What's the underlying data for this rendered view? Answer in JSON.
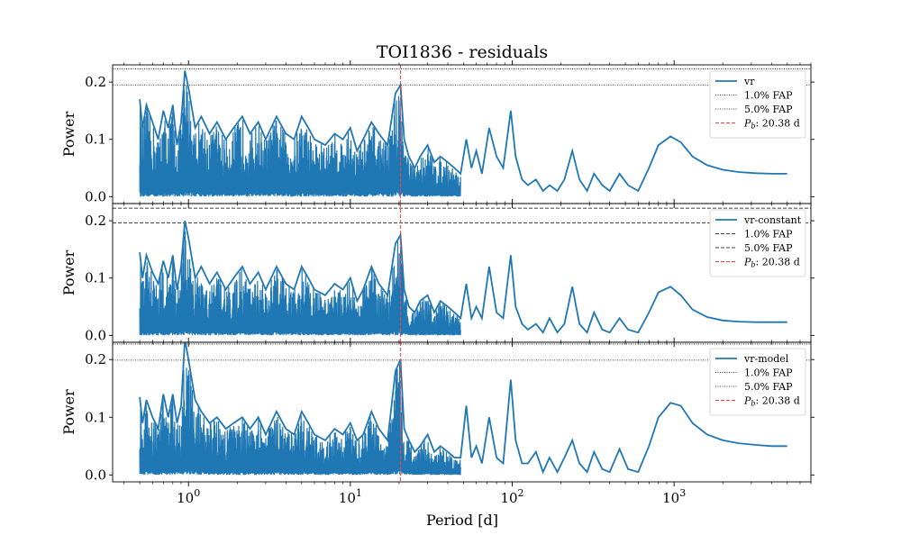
{
  "figure": {
    "title": "TOI1836 - residuals",
    "xlabel": "Period [d]",
    "x_tick_labels": [
      {
        "value": 1,
        "base": "10",
        "exp": "0"
      },
      {
        "value": 10,
        "base": "10",
        "exp": "1"
      },
      {
        "value": 100,
        "base": "10",
        "exp": "2"
      },
      {
        "value": 1000,
        "base": "10",
        "exp": "3"
      }
    ],
    "y_tick_labels": [
      "0.0",
      "0.1",
      "0.2"
    ],
    "colors": {
      "series": "#1f77b4",
      "marker_line": "#ff3b3b",
      "fap": "#000000"
    }
  },
  "chart_data": [
    {
      "type": "line",
      "xscale": "log",
      "xlim": [
        0.34,
        7000
      ],
      "ylim": [
        -0.012,
        0.23
      ],
      "ylabel": "Power",
      "legend_position": "top-right",
      "fap_style": "dotted",
      "fap_levels": [
        {
          "label": "1.0% FAP",
          "value": 0.223
        },
        {
          "label": "5.0% FAP",
          "value": 0.195
        }
      ],
      "marker": {
        "label_prefix": "P",
        "label_sub": "b",
        "label_suffix": ": 20.38 d",
        "period": 20.38
      },
      "series": [
        {
          "name": "vr",
          "x": [
            0.5,
            0.52,
            0.55,
            0.6,
            0.65,
            0.7,
            0.75,
            0.8,
            0.85,
            0.9,
            0.95,
            1.0,
            1.1,
            1.2,
            1.35,
            1.5,
            1.7,
            1.9,
            2.15,
            2.4,
            2.7,
            3.0,
            3.5,
            4.0,
            4.5,
            5.0,
            5.5,
            6.0,
            7.0,
            8.0,
            9.0,
            10.0,
            11.0,
            12.0,
            13.5,
            15.0,
            17.0,
            19.0,
            20.4,
            21.5,
            23.0,
            25.0,
            27.0,
            30.0,
            33.0,
            36.0,
            40.0,
            44.0,
            48.0,
            52.0,
            56.0,
            60.0,
            65.0,
            72.0,
            80.0,
            88.0,
            98.0,
            105.0,
            115.0,
            125.0,
            140.0,
            155.0,
            170.0,
            190.0,
            210.0,
            235.0,
            260.0,
            290.0,
            320.0,
            360.0,
            400.0,
            460.0,
            520.0,
            600.0,
            700.0,
            800.0,
            950.0,
            1100.0,
            1300.0,
            1600.0,
            2000.0,
            2500.0,
            3200.0,
            4000.0,
            5000.0
          ],
          "y": [
            0.17,
            0.12,
            0.16,
            0.13,
            0.1,
            0.15,
            0.12,
            0.16,
            0.09,
            0.13,
            0.22,
            0.19,
            0.12,
            0.14,
            0.11,
            0.13,
            0.1,
            0.12,
            0.14,
            0.11,
            0.13,
            0.1,
            0.14,
            0.11,
            0.1,
            0.14,
            0.12,
            0.1,
            0.09,
            0.11,
            0.1,
            0.12,
            0.08,
            0.1,
            0.13,
            0.11,
            0.09,
            0.18,
            0.195,
            0.1,
            0.07,
            0.05,
            0.07,
            0.09,
            0.06,
            0.07,
            0.06,
            0.05,
            0.04,
            0.1,
            0.05,
            0.08,
            0.04,
            0.12,
            0.07,
            0.05,
            0.15,
            0.07,
            0.03,
            0.02,
            0.03,
            0.01,
            0.02,
            0.01,
            0.03,
            0.08,
            0.03,
            0.01,
            0.04,
            0.02,
            0.01,
            0.04,
            0.02,
            0.01,
            0.05,
            0.09,
            0.105,
            0.095,
            0.07,
            0.055,
            0.047,
            0.043,
            0.041,
            0.04,
            0.04
          ]
        }
      ]
    },
    {
      "type": "line",
      "xscale": "log",
      "xlim": [
        0.34,
        7000
      ],
      "ylim": [
        -0.012,
        0.23
      ],
      "ylabel": "Power",
      "legend_position": "top-right",
      "fap_style": "dashed",
      "fap_levels": [
        {
          "label": "1.0% FAP",
          "value": 0.222
        },
        {
          "label": "5.0% FAP",
          "value": 0.196
        }
      ],
      "marker": {
        "label_prefix": "P",
        "label_sub": "b",
        "label_suffix": ": 20.38 d",
        "period": 20.38
      },
      "series": [
        {
          "name": "vr-constant",
          "x": [
            0.5,
            0.52,
            0.55,
            0.6,
            0.65,
            0.7,
            0.75,
            0.8,
            0.85,
            0.9,
            0.95,
            1.0,
            1.1,
            1.2,
            1.35,
            1.5,
            1.7,
            1.9,
            2.15,
            2.4,
            2.7,
            3.0,
            3.5,
            4.0,
            4.5,
            5.0,
            5.5,
            6.0,
            7.0,
            8.0,
            9.0,
            10.0,
            11.0,
            12.0,
            13.5,
            15.0,
            17.0,
            19.0,
            20.4,
            21.5,
            23.0,
            25.0,
            27.0,
            30.0,
            33.0,
            36.0,
            40.0,
            44.0,
            48.0,
            52.0,
            56.0,
            60.0,
            65.0,
            72.0,
            80.0,
            88.0,
            98.0,
            105.0,
            115.0,
            125.0,
            140.0,
            155.0,
            170.0,
            190.0,
            210.0,
            235.0,
            260.0,
            290.0,
            320.0,
            360.0,
            400.0,
            460.0,
            520.0,
            600.0,
            700.0,
            800.0,
            950.0,
            1100.0,
            1300.0,
            1600.0,
            2000.0,
            2500.0,
            3200.0,
            4000.0,
            5000.0
          ],
          "y": [
            0.145,
            0.1,
            0.14,
            0.11,
            0.09,
            0.13,
            0.1,
            0.14,
            0.08,
            0.12,
            0.2,
            0.17,
            0.1,
            0.12,
            0.09,
            0.11,
            0.08,
            0.1,
            0.12,
            0.09,
            0.11,
            0.08,
            0.12,
            0.09,
            0.08,
            0.12,
            0.1,
            0.08,
            0.07,
            0.09,
            0.08,
            0.1,
            0.06,
            0.08,
            0.12,
            0.09,
            0.07,
            0.16,
            0.175,
            0.08,
            0.05,
            0.04,
            0.06,
            0.07,
            0.04,
            0.06,
            0.05,
            0.04,
            0.03,
            0.09,
            0.03,
            0.05,
            0.03,
            0.12,
            0.04,
            0.03,
            0.14,
            0.05,
            0.02,
            0.01,
            0.02,
            0.005,
            0.03,
            0.005,
            0.02,
            0.085,
            0.02,
            0.005,
            0.04,
            0.01,
            0.005,
            0.03,
            0.01,
            0.005,
            0.04,
            0.075,
            0.085,
            0.07,
            0.045,
            0.032,
            0.026,
            0.024,
            0.023,
            0.023,
            0.023
          ]
        }
      ]
    },
    {
      "type": "line",
      "xscale": "log",
      "xlim": [
        0.34,
        7000
      ],
      "ylim": [
        -0.012,
        0.23
      ],
      "ylabel": "Power",
      "legend_position": "top-right",
      "fap_style": "dotted",
      "fap_levels": [
        {
          "label": "1.0% FAP",
          "value": 0.227
        },
        {
          "label": "5.0% FAP",
          "value": 0.199
        }
      ],
      "marker": {
        "label_prefix": "P",
        "label_sub": "b",
        "label_suffix": ": 20.38 d",
        "period": 20.38
      },
      "series": [
        {
          "name": "vr-model",
          "x": [
            0.5,
            0.52,
            0.55,
            0.6,
            0.65,
            0.7,
            0.75,
            0.8,
            0.85,
            0.9,
            0.95,
            1.0,
            1.1,
            1.2,
            1.35,
            1.5,
            1.7,
            1.9,
            2.15,
            2.4,
            2.7,
            3.0,
            3.5,
            4.0,
            4.5,
            5.0,
            5.5,
            6.0,
            7.0,
            8.0,
            9.0,
            10.0,
            11.0,
            12.0,
            13.5,
            15.0,
            17.0,
            19.0,
            20.4,
            21.5,
            23.0,
            25.0,
            27.0,
            30.0,
            33.0,
            36.0,
            40.0,
            44.0,
            48.0,
            52.0,
            56.0,
            60.0,
            65.0,
            72.0,
            80.0,
            88.0,
            98.0,
            105.0,
            115.0,
            125.0,
            140.0,
            155.0,
            170.0,
            190.0,
            210.0,
            235.0,
            260.0,
            290.0,
            320.0,
            360.0,
            400.0,
            460.0,
            520.0,
            600.0,
            700.0,
            800.0,
            950.0,
            1100.0,
            1300.0,
            1600.0,
            2000.0,
            2500.0,
            3200.0,
            4000.0,
            5000.0
          ],
          "y": [
            0.135,
            0.09,
            0.13,
            0.1,
            0.08,
            0.14,
            0.1,
            0.14,
            0.09,
            0.12,
            0.235,
            0.2,
            0.13,
            0.11,
            0.09,
            0.1,
            0.08,
            0.09,
            0.1,
            0.08,
            0.1,
            0.07,
            0.11,
            0.08,
            0.07,
            0.11,
            0.09,
            0.07,
            0.06,
            0.08,
            0.07,
            0.09,
            0.06,
            0.07,
            0.11,
            0.08,
            0.06,
            0.18,
            0.2,
            0.08,
            0.06,
            0.04,
            0.05,
            0.07,
            0.04,
            0.05,
            0.04,
            0.03,
            0.03,
            0.12,
            0.03,
            0.05,
            0.02,
            0.1,
            0.03,
            0.02,
            0.165,
            0.06,
            0.02,
            0.02,
            0.04,
            0.005,
            0.03,
            0.005,
            0.03,
            0.06,
            0.02,
            0.005,
            0.04,
            0.01,
            0.005,
            0.045,
            0.01,
            0.005,
            0.05,
            0.1,
            0.125,
            0.12,
            0.09,
            0.07,
            0.06,
            0.055,
            0.052,
            0.05,
            0.05
          ]
        }
      ]
    }
  ]
}
